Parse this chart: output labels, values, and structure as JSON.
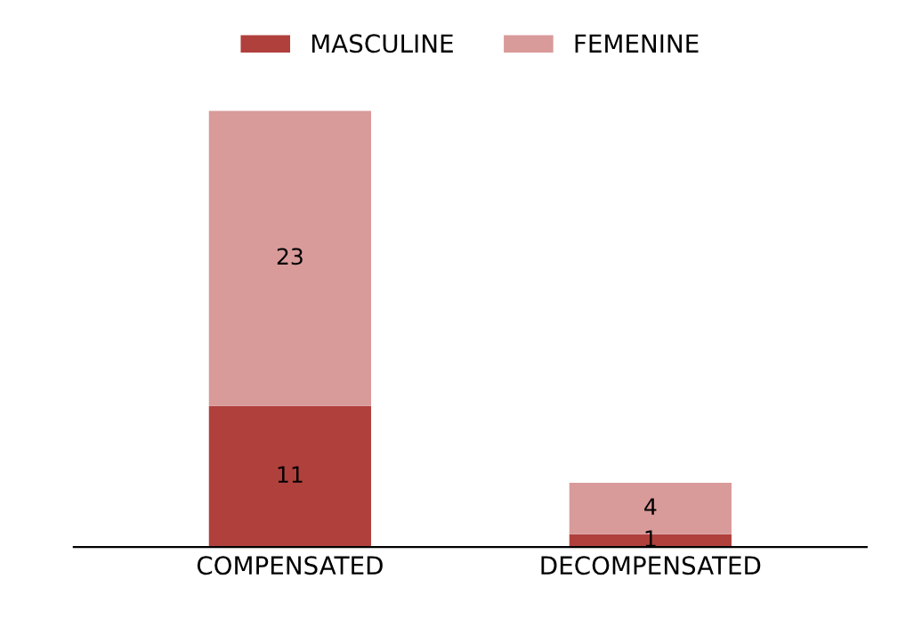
{
  "chart_data": {
    "type": "bar",
    "stacked": true,
    "categories": [
      "COMPENSATED",
      "DECOMPENSATED"
    ],
    "series": [
      {
        "name": "MASCULINE",
        "color": "#b0403c",
        "values": [
          11,
          1
        ]
      },
      {
        "name": "FEMENINE",
        "color": "#d99a9a",
        "values": [
          23,
          4
        ]
      }
    ],
    "data_labels": true,
    "legend": "top",
    "grid": false
  }
}
